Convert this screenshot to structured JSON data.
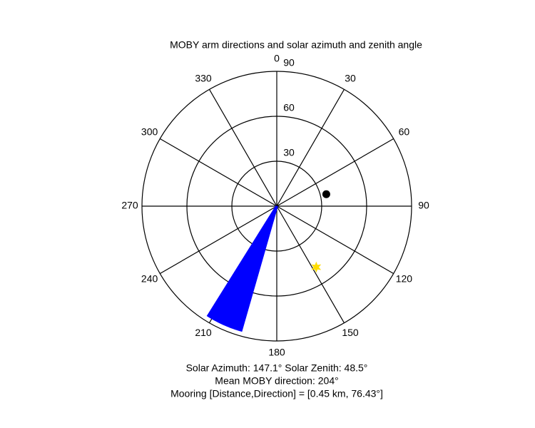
{
  "chart_data": {
    "type": "polar",
    "title": "MOBY arm directions and solar azimuth and zenith angle",
    "rlim": [
      0,
      90
    ],
    "rticks": [
      30,
      60,
      90
    ],
    "thetaticks": [
      0,
      30,
      60,
      90,
      120,
      150,
      180,
      210,
      240,
      270,
      300,
      330
    ],
    "series": [
      {
        "color": "#0000ff",
        "marker": "line",
        "theta": [
          196,
          197,
          198,
          199,
          200,
          201,
          202,
          203,
          204,
          205,
          206,
          207,
          208,
          209,
          210,
          211,
          212
        ],
        "r": [
          87,
          87,
          87,
          87,
          87,
          87,
          87,
          87,
          87,
          87,
          87,
          87,
          87,
          87,
          87,
          87,
          87
        ]
      },
      {
        "color": "#000000",
        "marker": "dot",
        "theta": [
          76.43
        ],
        "r": [
          34
        ]
      },
      {
        "color": "#ffdd00",
        "marker": "star",
        "theta": [
          147.1
        ],
        "r": [
          48.5
        ]
      }
    ],
    "annotations": [
      "Solar Azimuth: 147.1°   Solar Zenith: 48.5°",
      "Mean MOBY direction: 204°",
      "Mooring [Distance,Direction] = [0.45 km, 76.43°]"
    ]
  }
}
